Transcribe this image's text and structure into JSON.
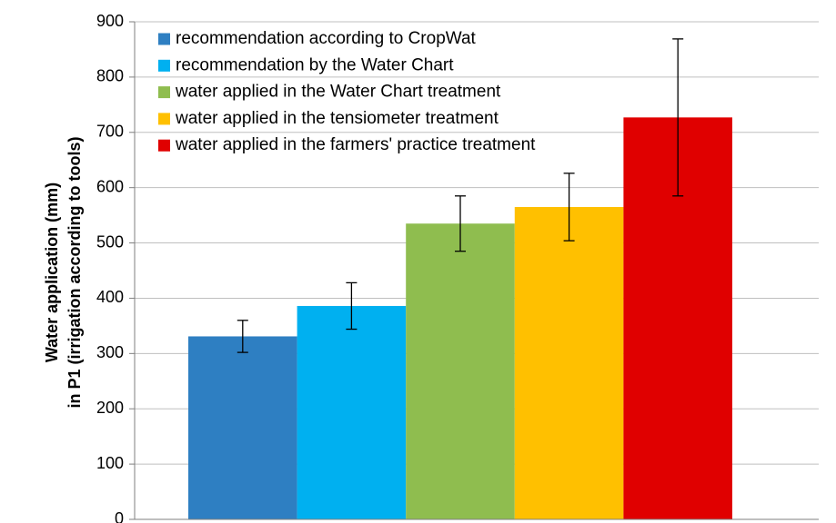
{
  "chart_data": {
    "type": "bar",
    "y_label": [
      "Water application (mm)",
      "in P1 (irrigation according to tools)"
    ],
    "ylim": [
      0,
      900
    ],
    "yticks": [
      0,
      100,
      200,
      300,
      400,
      500,
      600,
      700,
      800,
      900
    ],
    "grid": true,
    "legend": "top-left",
    "series": [
      {
        "name": "recommendation according to CropWat",
        "color": "#2e7fc2",
        "values": [
          331
        ],
        "errors": [
          29
        ]
      },
      {
        "name": "recommendation by the Water Chart",
        "color": "#00b0f0",
        "values": [
          386
        ],
        "errors": [
          42
        ]
      },
      {
        "name": "water applied in the Water Chart treatment",
        "color": "#8fbd4f",
        "values": [
          535
        ],
        "errors": [
          50
        ]
      },
      {
        "name": "water applied in the tensiometer treatment",
        "color": "#ffc000",
        "values": [
          565
        ],
        "errors": [
          61
        ]
      },
      {
        "name": "water applied in the farmers' practice treatment",
        "color": "#e00000",
        "values": [
          727
        ],
        "errors": [
          142
        ]
      }
    ]
  }
}
